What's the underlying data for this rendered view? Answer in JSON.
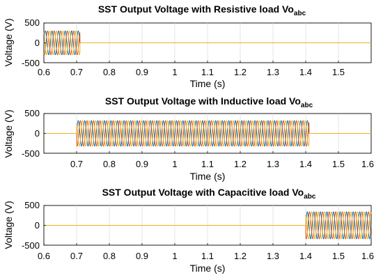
{
  "colors": {
    "phase_a": "#0072BD",
    "phase_b": "#D95319",
    "phase_c": "#EDB120",
    "grid": "#dcdcdc",
    "frame": "#000000"
  },
  "chart_data": [
    {
      "type": "line",
      "title": "SST Output Voltage with Resistive load Vo",
      "title_subscript": "abc",
      "xlabel": "Time (s)",
      "ylabel": "Voltage (V)",
      "xlim": [
        0.6,
        1.6
      ],
      "ylim": [
        -500,
        500
      ],
      "xticks": [
        0.6,
        0.7,
        0.8,
        0.9,
        1.0,
        1.1,
        1.2,
        1.3,
        1.4,
        1.5
      ],
      "xtick_labels": [
        "0.6",
        "0.7",
        "0.8",
        "0.9",
        "1",
        "1.1",
        "1.2",
        "1.3",
        "1.4",
        "1.5"
      ],
      "yticks": [
        -500,
        0,
        500
      ],
      "ytick_labels": [
        "-500",
        "0",
        "500"
      ],
      "grid": true,
      "waveform": {
        "kind": "three-phase sine",
        "amplitude": 300,
        "frequency_hz": 50,
        "active_interval": [
          0.6,
          0.71
        ]
      },
      "series": [
        {
          "phase_deg": 0
        },
        {
          "phase_deg": -120
        },
        {
          "phase_deg": 120
        }
      ]
    },
    {
      "type": "line",
      "title": "SST Output Voltage with Inductive load Vo",
      "title_subscript": "abc",
      "xlabel": "Time (s)",
      "ylabel": "Voltage (V)",
      "xlim": [
        0.6,
        1.6
      ],
      "ylim": [
        -500,
        500
      ],
      "xticks": [
        0.7,
        0.8,
        0.9,
        1.0,
        1.1,
        1.2,
        1.3,
        1.4,
        1.5,
        1.6
      ],
      "xtick_labels": [
        "0.7",
        "0.8",
        "0.9",
        "1",
        "1.1",
        "1.2",
        "1.3",
        "1.4",
        "1.5",
        "1.6"
      ],
      "yticks": [
        -500,
        0,
        500
      ],
      "ytick_labels": [
        "-500",
        "0",
        "500"
      ],
      "grid": true,
      "waveform": {
        "kind": "three-phase sine",
        "amplitude": 320,
        "frequency_hz": 50,
        "active_interval": [
          0.7,
          1.41
        ]
      },
      "series": [
        {
          "phase_deg": 0
        },
        {
          "phase_deg": -120
        },
        {
          "phase_deg": 120
        }
      ]
    },
    {
      "type": "line",
      "title": "SST Output Voltage with Capacitive load Vo",
      "title_subscript": "abc",
      "xlabel": "Time (s)",
      "ylabel": "Voltage (V)",
      "xlim": [
        0.6,
        1.6
      ],
      "ylim": [
        -500,
        500
      ],
      "xticks": [
        0.6,
        0.7,
        0.8,
        0.9,
        1.0,
        1.1,
        1.2,
        1.3,
        1.4,
        1.5,
        1.6
      ],
      "xtick_labels": [
        "0.6",
        "0.7",
        "0.8",
        "0.9",
        "1",
        "1.1",
        "1.2",
        "1.3",
        "1.4",
        "1.5",
        "1.6"
      ],
      "yticks": [
        -500,
        0,
        500
      ],
      "ytick_labels": [
        "-500",
        "0",
        "500"
      ],
      "grid": true,
      "waveform": {
        "kind": "three-phase sine",
        "amplitude": 340,
        "frequency_hz": 50,
        "active_interval": [
          1.4,
          1.6
        ]
      },
      "series": [
        {
          "phase_deg": 0
        },
        {
          "phase_deg": -120
        },
        {
          "phase_deg": 120
        }
      ]
    }
  ]
}
